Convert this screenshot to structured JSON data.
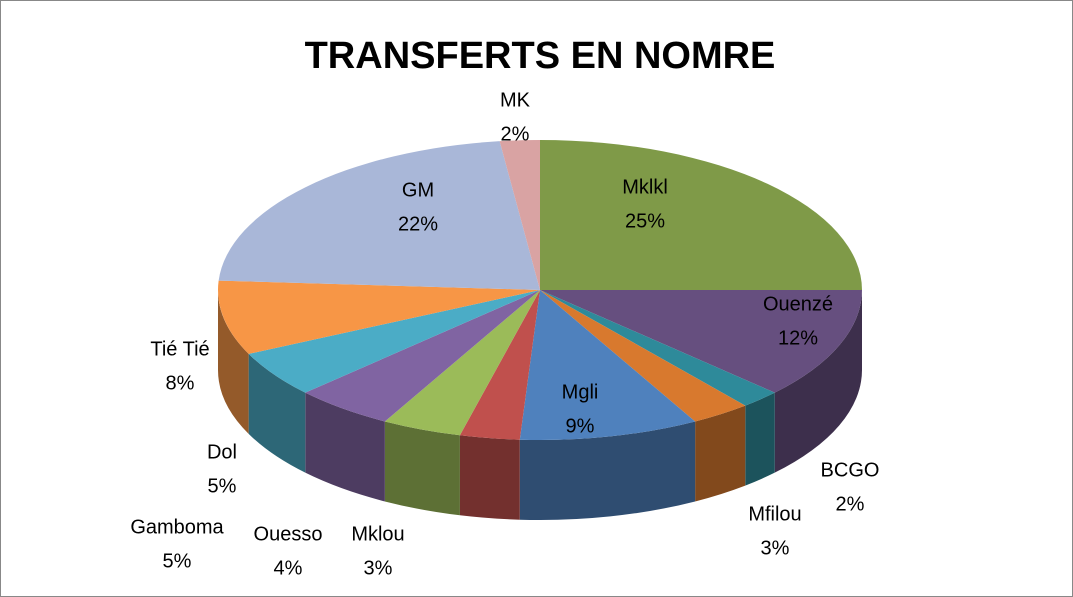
{
  "chart_data": {
    "type": "pie3d",
    "title": "TRANSFERTS EN NOMRE",
    "categories": [
      "Mklkl",
      "Ouenzé",
      "BCGO",
      "Mfilou",
      "Mgli",
      "Mklou",
      "Ouesso",
      "Gamboma",
      "Dol",
      "Tié Tié",
      "GM",
      "MK"
    ],
    "values": [
      25,
      12,
      2,
      3,
      9,
      3,
      4,
      5,
      5,
      8,
      22,
      2
    ],
    "value_labels": [
      "25%",
      "12%",
      "2%",
      "3%",
      "9%",
      "3%",
      "4%",
      "5%",
      "5%",
      "8%",
      "22%",
      "2%"
    ],
    "colors": [
      "#7f9a48",
      "#664f7f",
      "#2e8a9a",
      "#d8792e",
      "#4f81bd",
      "#c0504d",
      "#9bbb59",
      "#8064a2",
      "#4bacc6",
      "#f79646",
      "#a9b7d8",
      "#d9a3a3"
    ]
  }
}
